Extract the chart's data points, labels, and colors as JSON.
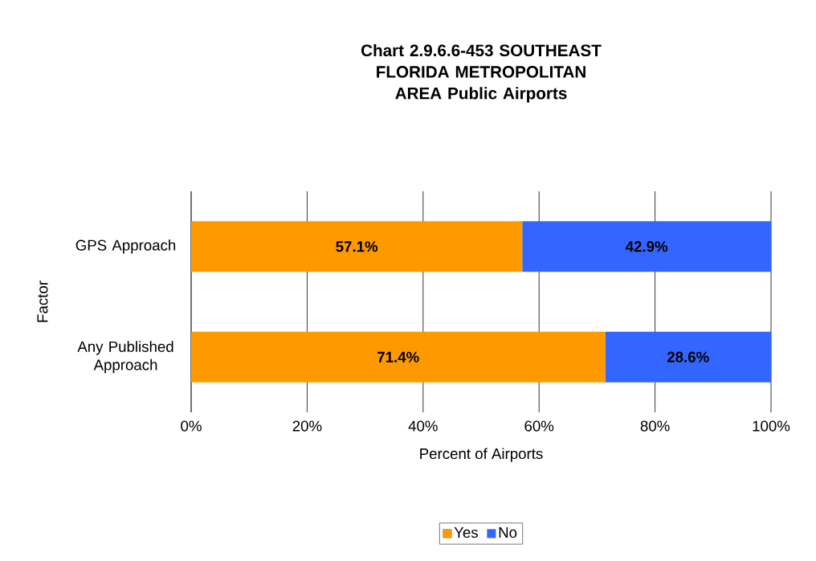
{
  "chart_data": {
    "type": "bar",
    "orientation": "horizontal",
    "stacked": true,
    "title": "Chart 2.9.6.6-453 SOUTHEAST FLORIDA METROPOLITAN AREA Public Airports",
    "xlabel": "Percent of Airports",
    "ylabel": "Factor",
    "categories": [
      "GPS Approach",
      "Any Published Approach"
    ],
    "series": [
      {
        "name": "Yes",
        "color": "#ff9900",
        "values": [
          57.1,
          71.4
        ],
        "value_labels": [
          "57.1%",
          "71.4%"
        ]
      },
      {
        "name": "No",
        "color": "#3366ff",
        "values": [
          42.9,
          28.6
        ],
        "value_labels": [
          "42.9%",
          "28.6%"
        ]
      }
    ],
    "xlim": [
      0,
      100
    ],
    "xticks": [
      {
        "value": 0,
        "label": "0%"
      },
      {
        "value": 20,
        "label": "20%"
      },
      {
        "value": 40,
        "label": "40%"
      },
      {
        "value": 60,
        "label": "60%"
      },
      {
        "value": 80,
        "label": "80%"
      },
      {
        "value": 100,
        "label": "100%"
      }
    ],
    "grid": "x",
    "legend": "bottom"
  }
}
